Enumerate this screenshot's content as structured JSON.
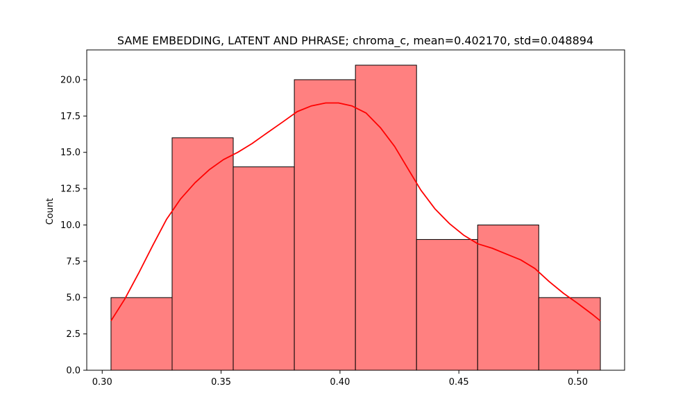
{
  "chart_data": {
    "type": "bar",
    "title": "SAME EMBEDDING, LATENT AND PHRASE; chroma_c, mean=0.402170, std=0.048894",
    "xlabel": "",
    "ylabel": "Count",
    "xlim": [
      0.2935,
      0.5197
    ],
    "ylim": [
      0,
      22.05
    ],
    "bin_edges": [
      0.3037,
      0.3294,
      0.3551,
      0.3808,
      0.4065,
      0.4322,
      0.4579,
      0.4836,
      0.5095
    ],
    "values": [
      5,
      16,
      14,
      20,
      21,
      9,
      10,
      5
    ],
    "x_ticks": [
      0.3,
      0.35,
      0.4,
      0.45,
      0.5
    ],
    "x_tick_labels": [
      "0.30",
      "0.35",
      "0.40",
      "0.45",
      "0.50"
    ],
    "y_ticks": [
      0,
      2.5,
      5,
      7.5,
      10,
      12.5,
      15,
      17.5,
      20
    ],
    "y_tick_labels": [
      "0.0",
      "2.5",
      "5.0",
      "7.5",
      "10.0",
      "12.5",
      "15.0",
      "17.5",
      "20.0"
    ],
    "kde": {
      "x": [
        0.3037,
        0.3095,
        0.3154,
        0.3213,
        0.3271,
        0.333,
        0.339,
        0.345,
        0.351,
        0.357,
        0.363,
        0.369,
        0.376,
        0.382,
        0.388,
        0.394,
        0.3994,
        0.405,
        0.411,
        0.417,
        0.423,
        0.4285,
        0.434,
        0.44,
        0.446,
        0.452,
        0.458,
        0.464,
        0.47,
        0.476,
        0.482,
        0.488,
        0.494,
        0.5,
        0.5065,
        0.5095
      ],
      "y": [
        3.4,
        4.9,
        6.7,
        8.6,
        10.4,
        11.8,
        12.9,
        13.8,
        14.5,
        15.0,
        15.6,
        16.3,
        17.1,
        17.8,
        18.2,
        18.4,
        18.4,
        18.2,
        17.7,
        16.7,
        15.4,
        13.9,
        12.4,
        11.1,
        10.1,
        9.3,
        8.7,
        8.4,
        8.0,
        7.6,
        7.0,
        6.1,
        5.3,
        4.6,
        3.8,
        3.4
      ]
    },
    "bar_color": "#ff8080",
    "bar_edge_color": "#000000",
    "kde_color": "#ff0000",
    "grid": false,
    "legend": "none"
  }
}
